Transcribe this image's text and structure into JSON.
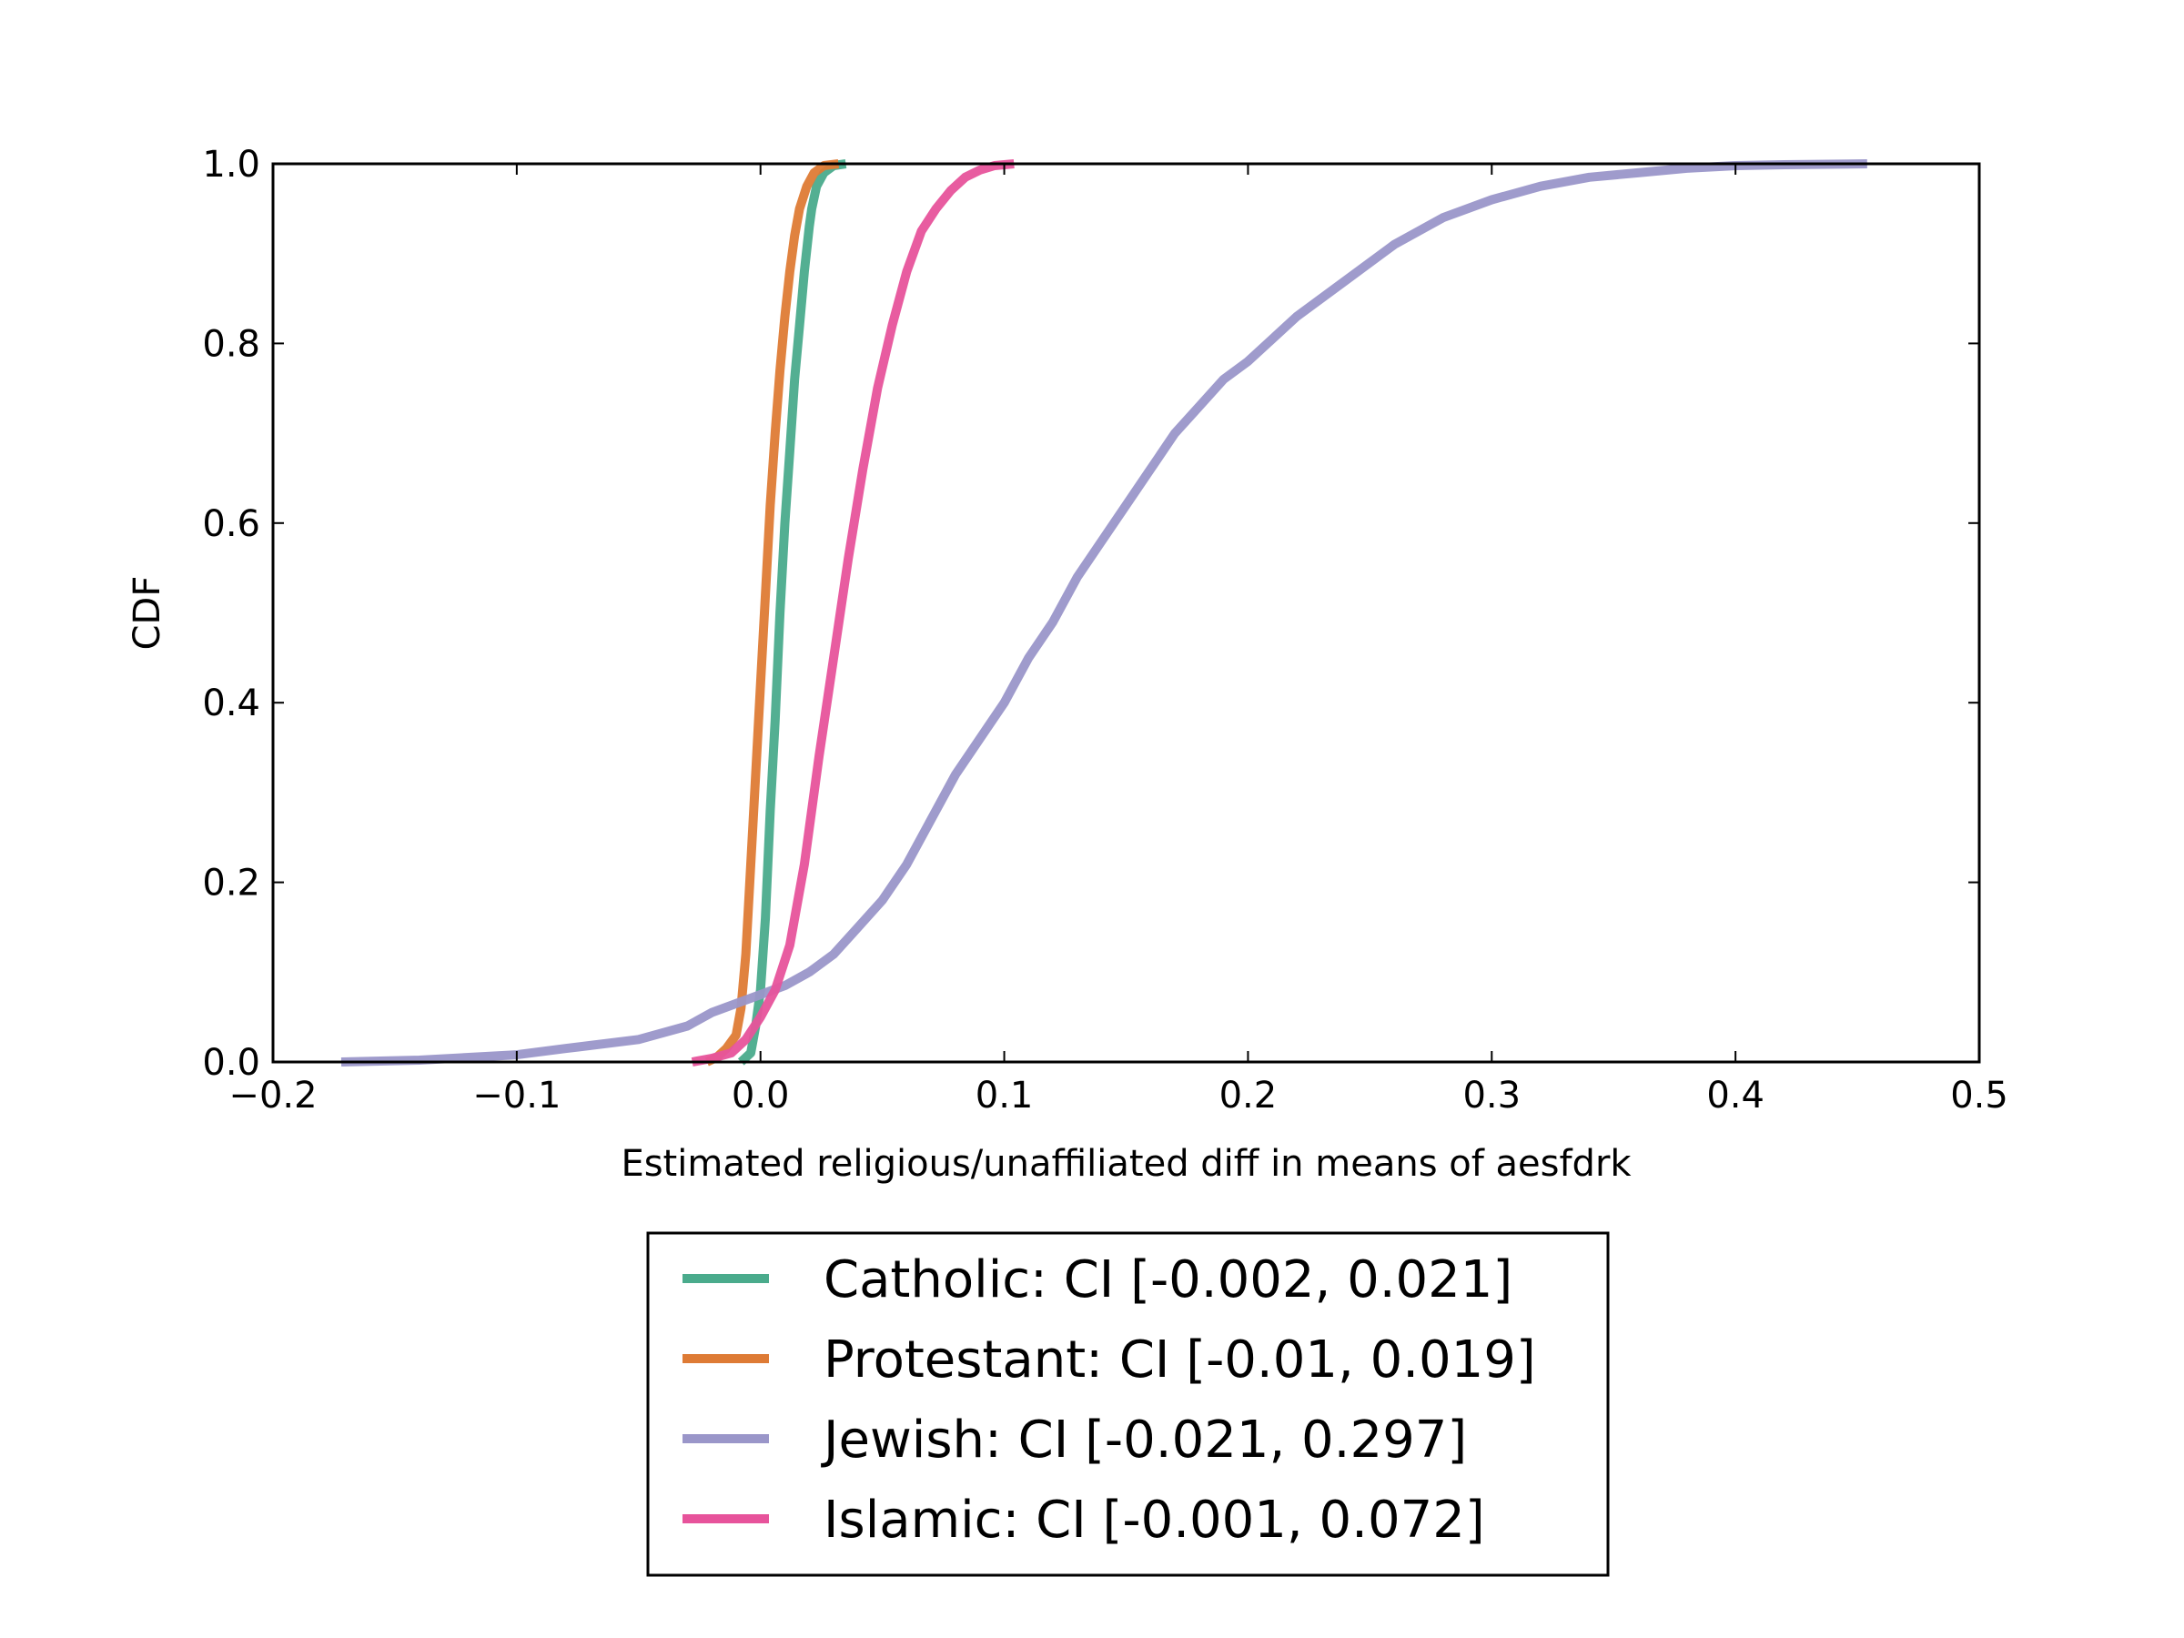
{
  "chart_data": {
    "type": "line",
    "title": "",
    "xlabel": "Estimated religious/unaffiliated diff in means of aesfdrk",
    "ylabel": "CDF",
    "xlim": [
      -0.2,
      0.5
    ],
    "ylim": [
      0.0,
      1.0
    ],
    "xticks": [
      -0.2,
      -0.1,
      0.0,
      0.1,
      0.2,
      0.3,
      0.4,
      0.5
    ],
    "xtick_labels": [
      "−0.2",
      "−0.1",
      "0.0",
      "0.1",
      "0.2",
      "0.3",
      "0.4",
      "0.5"
    ],
    "yticks": [
      0.0,
      0.2,
      0.4,
      0.6,
      0.8,
      1.0
    ],
    "ytick_labels": [
      "0.0",
      "0.2",
      "0.4",
      "0.6",
      "0.8",
      "1.0"
    ],
    "grid": false,
    "legend_position": "below-center",
    "series": [
      {
        "name": "Catholic: CI [-0.002, 0.021]",
        "color": "#4aab8c",
        "x": [
          -0.008,
          -0.004,
          -0.002,
          0.0,
          0.002,
          0.004,
          0.006,
          0.008,
          0.01,
          0.012,
          0.014,
          0.016,
          0.018,
          0.02,
          0.021,
          0.023,
          0.026,
          0.03,
          0.035
        ],
        "y": [
          0.0,
          0.01,
          0.04,
          0.08,
          0.16,
          0.28,
          0.38,
          0.5,
          0.6,
          0.68,
          0.76,
          0.82,
          0.88,
          0.93,
          0.95,
          0.975,
          0.99,
          0.998,
          1.0
        ]
      },
      {
        "name": "Protestant: CI [-0.01, 0.019]",
        "color": "#de7b35",
        "x": [
          -0.022,
          -0.018,
          -0.014,
          -0.01,
          -0.008,
          -0.006,
          -0.004,
          -0.002,
          0.0,
          0.002,
          0.004,
          0.006,
          0.008,
          0.01,
          0.012,
          0.014,
          0.016,
          0.019,
          0.022,
          0.026,
          0.032
        ],
        "y": [
          0.0,
          0.005,
          0.015,
          0.03,
          0.06,
          0.12,
          0.22,
          0.32,
          0.42,
          0.52,
          0.62,
          0.7,
          0.77,
          0.83,
          0.88,
          0.92,
          0.95,
          0.975,
          0.99,
          0.998,
          1.0
        ]
      },
      {
        "name": "Jewish: CI [-0.021, 0.297]",
        "color": "#9a96c9",
        "x": [
          -0.172,
          -0.14,
          -0.1,
          -0.08,
          -0.05,
          -0.03,
          -0.02,
          -0.01,
          0.0,
          0.01,
          0.02,
          0.03,
          0.04,
          0.05,
          0.06,
          0.07,
          0.08,
          0.09,
          0.1,
          0.11,
          0.12,
          0.13,
          0.14,
          0.15,
          0.16,
          0.17,
          0.18,
          0.19,
          0.2,
          0.22,
          0.24,
          0.26,
          0.28,
          0.3,
          0.32,
          0.34,
          0.36,
          0.38,
          0.4,
          0.42,
          0.454
        ],
        "y": [
          0.0,
          0.002,
          0.008,
          0.015,
          0.025,
          0.04,
          0.055,
          0.065,
          0.075,
          0.085,
          0.1,
          0.12,
          0.15,
          0.18,
          0.22,
          0.27,
          0.32,
          0.36,
          0.4,
          0.45,
          0.49,
          0.54,
          0.58,
          0.62,
          0.66,
          0.7,
          0.73,
          0.76,
          0.78,
          0.83,
          0.87,
          0.91,
          0.94,
          0.96,
          0.975,
          0.985,
          0.99,
          0.995,
          0.998,
          0.999,
          1.0
        ]
      },
      {
        "name": "Islamic: CI [-0.001, 0.072]",
        "color": "#e7539b",
        "x": [
          -0.028,
          -0.02,
          -0.012,
          -0.006,
          0.0,
          0.006,
          0.012,
          0.018,
          0.024,
          0.03,
          0.036,
          0.042,
          0.048,
          0.054,
          0.06,
          0.066,
          0.072,
          0.078,
          0.084,
          0.09,
          0.096,
          0.104
        ],
        "y": [
          0.0,
          0.004,
          0.01,
          0.025,
          0.05,
          0.08,
          0.13,
          0.22,
          0.34,
          0.45,
          0.56,
          0.66,
          0.75,
          0.82,
          0.88,
          0.925,
          0.95,
          0.97,
          0.985,
          0.993,
          0.998,
          1.0
        ]
      }
    ]
  }
}
